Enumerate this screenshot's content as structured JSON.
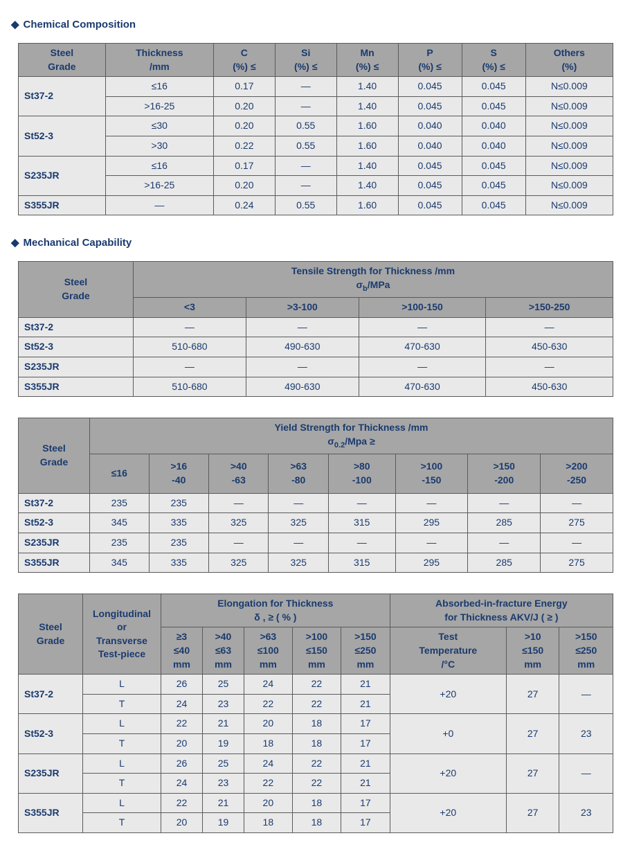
{
  "sections": {
    "chemical": "Chemical Composition",
    "mechanical": "Mechanical Capability"
  },
  "chemTable": {
    "headers": {
      "grade1": "Steel",
      "grade2": "Grade",
      "thick1": "Thickness",
      "thick2": "/mm",
      "c1": "C",
      "c2": "(%) ≤",
      "si1": "Si",
      "si2": "(%) ≤",
      "mn1": "Mn",
      "mn2": "(%) ≤",
      "p1": "P",
      "p2": "(%) ≤",
      "s1": "S",
      "s2": "(%) ≤",
      "o1": "Others",
      "o2": "(%)"
    },
    "rows": [
      {
        "grade": "St37-2",
        "thick": "≤16",
        "c": "0.17",
        "si": "—",
        "mn": "1.40",
        "p": "0.045",
        "s": "0.045",
        "o": "N≤0.009"
      },
      {
        "grade": "",
        "thick": ">16-25",
        "c": "0.20",
        "si": "—",
        "mn": "1.40",
        "p": "0.045",
        "s": "0.045",
        "o": "N≤0.009"
      },
      {
        "grade": "St52-3",
        "thick": "≤30",
        "c": "0.20",
        "si": "0.55",
        "mn": "1.60",
        "p": "0.040",
        "s": "0.040",
        "o": "N≤0.009"
      },
      {
        "grade": "",
        "thick": ">30",
        "c": "0.22",
        "si": "0.55",
        "mn": "1.60",
        "p": "0.040",
        "s": "0.040",
        "o": "N≤0.009"
      },
      {
        "grade": "S235JR",
        "thick": "≤16",
        "c": "0.17",
        "si": "—",
        "mn": "1.40",
        "p": "0.045",
        "s": "0.045",
        "o": "N≤0.009"
      },
      {
        "grade": "",
        "thick": ">16-25",
        "c": "0.20",
        "si": "—",
        "mn": "1.40",
        "p": "0.045",
        "s": "0.045",
        "o": "N≤0.009"
      },
      {
        "grade": "S355JR",
        "thick": "—",
        "c": "0.24",
        "si": "0.55",
        "mn": "1.60",
        "p": "0.045",
        "s": "0.045",
        "o": "N≤0.009"
      }
    ]
  },
  "tensile": {
    "title1": "Tensile Strength for Thickness /mm",
    "title2_pre": "σ",
    "title2_sub": "b",
    "title2_post": "/MPa",
    "cols": [
      "<3",
      ">3-100",
      ">100-150",
      ">150-250"
    ],
    "gradeH1": "Steel",
    "gradeH2": "Grade",
    "rows": [
      {
        "grade": "St37-2",
        "v": [
          "—",
          "—",
          "—",
          "—"
        ]
      },
      {
        "grade": "St52-3",
        "v": [
          "510-680",
          "490-630",
          "470-630",
          "450-630"
        ]
      },
      {
        "grade": "S235JR",
        "v": [
          "—",
          "—",
          "—",
          "—"
        ]
      },
      {
        "grade": "S355JR",
        "v": [
          "510-680",
          "490-630",
          "470-630",
          "450-630"
        ]
      }
    ]
  },
  "yield": {
    "title1": "Yield Strength for Thickness /mm",
    "title2_pre": "σ",
    "title2_sub": "0.2",
    "title2_post": "/Mpa  ≥",
    "gradeH1": "Steel",
    "gradeH2": "Grade",
    "cols": [
      {
        "t": "≤16",
        "b": ""
      },
      {
        "t": ">16",
        "b": "-40"
      },
      {
        "t": ">40",
        "b": "-63"
      },
      {
        "t": ">63",
        "b": "-80"
      },
      {
        "t": ">80",
        "b": "-100"
      },
      {
        "t": ">100",
        "b": "-150"
      },
      {
        "t": ">150",
        "b": "-200"
      },
      {
        "t": ">200",
        "b": "-250"
      }
    ],
    "rows": [
      {
        "grade": "St37-2",
        "v": [
          "235",
          "235",
          "—",
          "—",
          "—",
          "—",
          "—",
          "—"
        ]
      },
      {
        "grade": "St52-3",
        "v": [
          "345",
          "335",
          "325",
          "325",
          "315",
          "295",
          "285",
          "275"
        ]
      },
      {
        "grade": "S235JR",
        "v": [
          "235",
          "235",
          "—",
          "—",
          "—",
          "—",
          "—",
          "—"
        ]
      },
      {
        "grade": "S355JR",
        "v": [
          "345",
          "335",
          "325",
          "325",
          "315",
          "295",
          "285",
          "275"
        ]
      }
    ]
  },
  "elong": {
    "gradeH1": "Steel",
    "gradeH2": "Grade",
    "lt1": "Longitudinal",
    "lt2": "or",
    "lt3": "Transverse",
    "lt4": "Test-piece",
    "elongTitle": "Elongation for Thickness",
    "elongSub": "δ , ≥ ( % )",
    "akvTitle": "Absorbed-in-fracture Energy",
    "akvSub": "for Thickness  AKV/J ( ≥ )",
    "ecols": [
      {
        "a": "≥3",
        "b": "≤40",
        "c": "mm"
      },
      {
        "a": ">40",
        "b": "≤63",
        "c": "mm"
      },
      {
        "a": ">63",
        "b": "≤100",
        "c": "mm"
      },
      {
        "a": ">100",
        "b": "≤150",
        "c": "mm"
      },
      {
        "a": ">150",
        "b": "≤250",
        "c": "mm"
      }
    ],
    "acols": [
      {
        "a": "Test",
        "b": "Temperature",
        "c": "/°C"
      },
      {
        "a": ">10",
        "b": "≤150",
        "c": "mm"
      },
      {
        "a": ">150",
        "b": "≤250",
        "c": "mm"
      }
    ],
    "rows": [
      {
        "grade": "St37-2",
        "L": [
          "26",
          "25",
          "24",
          "22",
          "21"
        ],
        "T": [
          "24",
          "23",
          "22",
          "22",
          "21"
        ],
        "akv": [
          "+20",
          "27",
          "—"
        ]
      },
      {
        "grade": "St52-3",
        "L": [
          "22",
          "21",
          "20",
          "18",
          "17"
        ],
        "T": [
          "20",
          "19",
          "18",
          "18",
          "17"
        ],
        "akv": [
          "+0",
          "27",
          "23"
        ]
      },
      {
        "grade": "S235JR",
        "L": [
          "26",
          "25",
          "24",
          "22",
          "21"
        ],
        "T": [
          "24",
          "23",
          "22",
          "22",
          "21"
        ],
        "akv": [
          "+20",
          "27",
          "—"
        ]
      },
      {
        "grade": "S355JR",
        "L": [
          "22",
          "21",
          "20",
          "18",
          "17"
        ],
        "T": [
          "20",
          "19",
          "18",
          "18",
          "17"
        ],
        "akv": [
          "+20",
          "27",
          "23"
        ]
      }
    ],
    "Llabel": "L",
    "Tlabel": "T"
  }
}
